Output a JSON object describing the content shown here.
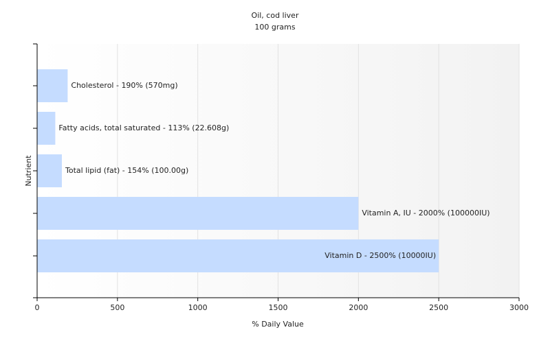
{
  "chart_data": {
    "type": "bar",
    "orientation": "horizontal",
    "title": "Oil, cod liver",
    "subtitle": "100 grams",
    "x_label": "% Daily Value",
    "y_label": "Nutrient",
    "values": [
      190,
      113,
      154,
      2000,
      2500
    ],
    "value_labels": [
      "Cholesterol - 190% (570mg)",
      "Fatty acids, total saturated - 113% (22.608g)",
      "Total lipid (fat) - 154% (100.00g)",
      "Vitamin A, IU - 2000% (100000IU)",
      "Vitamin D - 2500% (10000IU)"
    ],
    "color": "#c5dcff",
    "xlim": [
      0,
      3000
    ],
    "xticks": [
      0,
      500,
      1000,
      1500,
      2000,
      2500,
      3000
    ],
    "grid": true
  }
}
